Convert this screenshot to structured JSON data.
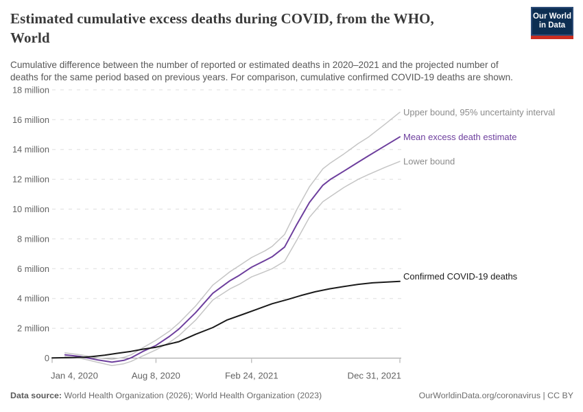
{
  "header": {
    "title_line1": "Estimated cumulative excess deaths during COVID, from the WHO,",
    "title_line2": "World",
    "subtitle_line1": "Cumulative difference between the number of reported or estimated deaths in 2020–2021 and the projected number of",
    "subtitle_line2": "deaths for the same period based on previous years. For comparison, cumulative confirmed COVID-19 deaths are shown.",
    "logo_line1": "Our World",
    "logo_line2": "in Data"
  },
  "footer": {
    "data_source_label": "Data source:",
    "data_source_value": " World Health Organization (2026); World Health Organization (2023)",
    "credit": "OurWorldinData.org/coronavirus | CC BY"
  },
  "colors": {
    "accent_purple": "#6d3e9d",
    "bound_gray": "#c5c5c5",
    "bound_label_gray": "#8b8b8b",
    "confirmed_black": "#1a1a1a",
    "logo_navy": "#0d2e52",
    "logo_red": "#cb2d20"
  },
  "chart_data": {
    "type": "line",
    "title": "Estimated cumulative excess deaths during COVID, from the WHO, World",
    "value_unit": "million deaths",
    "grid": true,
    "legend_position": "line-end-labels",
    "x_axis": {
      "range_days": [
        0,
        727
      ],
      "ticks": [
        {
          "label": "Jan 4, 2020",
          "day": 0
        },
        {
          "label": "Aug 8, 2020",
          "day": 217
        },
        {
          "label": "Feb 24, 2021",
          "day": 417
        },
        {
          "label": "Dec 31, 2021",
          "day": 727
        }
      ]
    },
    "y_axis": {
      "unit_suffix": " million",
      "zero_label": "0",
      "ticks_millions": [
        0,
        2,
        4,
        6,
        8,
        10,
        12,
        14,
        16,
        18
      ],
      "ylim_millions": [
        -0.6,
        18.4
      ]
    },
    "series": [
      {
        "id": "upper-bound",
        "name": "Upper bound, 95% uncertainty interval",
        "color": "#c5c5c5",
        "label_color": "#8b8b8b",
        "width": 1.5,
        "label_dy": 0,
        "points_day_millions": [
          [
            27,
            0.35
          ],
          [
            60,
            0.22
          ],
          [
            95,
            0.02
          ],
          [
            125,
            -0.08
          ],
          [
            150,
            0.05
          ],
          [
            165,
            0.22
          ],
          [
            190,
            0.7
          ],
          [
            217,
            1.2
          ],
          [
            245,
            1.8
          ],
          [
            265,
            2.35
          ],
          [
            300,
            3.5
          ],
          [
            336,
            4.9
          ],
          [
            372,
            5.8
          ],
          [
            391,
            6.2
          ],
          [
            417,
            6.75
          ],
          [
            445,
            7.2
          ],
          [
            460,
            7.5
          ],
          [
            486,
            8.3
          ],
          [
            512,
            10.0
          ],
          [
            538,
            11.5
          ],
          [
            566,
            12.7
          ],
          [
            582,
            13.1
          ],
          [
            610,
            13.7
          ],
          [
            640,
            14.4
          ],
          [
            660,
            14.8
          ],
          [
            696,
            15.7
          ],
          [
            727,
            16.5
          ]
        ]
      },
      {
        "id": "lower-bound",
        "name": "Lower bound",
        "color": "#c5c5c5",
        "label_color": "#8b8b8b",
        "width": 1.5,
        "label_dy": 0,
        "points_day_millions": [
          [
            27,
            0.1
          ],
          [
            60,
            -0.02
          ],
          [
            95,
            -0.28
          ],
          [
            125,
            -0.5
          ],
          [
            150,
            -0.38
          ],
          [
            165,
            -0.22
          ],
          [
            190,
            0.15
          ],
          [
            217,
            0.55
          ],
          [
            245,
            1.05
          ],
          [
            265,
            1.5
          ],
          [
            300,
            2.55
          ],
          [
            336,
            3.9
          ],
          [
            372,
            4.65
          ],
          [
            391,
            4.95
          ],
          [
            417,
            5.45
          ],
          [
            445,
            5.8
          ],
          [
            460,
            6.0
          ],
          [
            486,
            6.5
          ],
          [
            512,
            7.95
          ],
          [
            538,
            9.45
          ],
          [
            566,
            10.5
          ],
          [
            582,
            10.85
          ],
          [
            610,
            11.45
          ],
          [
            640,
            12.0
          ],
          [
            660,
            12.3
          ],
          [
            696,
            12.8
          ],
          [
            727,
            13.2
          ]
        ]
      },
      {
        "id": "mean-excess-deaths",
        "name": "Mean excess death estimate",
        "color": "#6d3e9d",
        "label_color": "#6d3e9d",
        "width": 2,
        "label_dy": 0,
        "points_day_millions": [
          [
            27,
            0.22
          ],
          [
            60,
            0.1
          ],
          [
            95,
            -0.12
          ],
          [
            125,
            -0.27
          ],
          [
            150,
            -0.15
          ],
          [
            165,
            0.02
          ],
          [
            190,
            0.45
          ],
          [
            217,
            0.85
          ],
          [
            245,
            1.45
          ],
          [
            265,
            1.95
          ],
          [
            300,
            3.05
          ],
          [
            336,
            4.35
          ],
          [
            372,
            5.2
          ],
          [
            391,
            5.55
          ],
          [
            417,
            6.1
          ],
          [
            445,
            6.55
          ],
          [
            460,
            6.8
          ],
          [
            486,
            7.45
          ],
          [
            512,
            9.0
          ],
          [
            538,
            10.45
          ],
          [
            566,
            11.6
          ],
          [
            582,
            12.0
          ],
          [
            610,
            12.55
          ],
          [
            640,
            13.15
          ],
          [
            660,
            13.55
          ],
          [
            696,
            14.25
          ],
          [
            727,
            14.85
          ]
        ]
      },
      {
        "id": "confirmed-covid-deaths",
        "name": "Confirmed COVID-19 deaths",
        "color": "#1a1a1a",
        "label_color": "#1a1a1a",
        "width": 2,
        "label_dy": -7,
        "points_day_millions": [
          [
            0,
            0.01
          ],
          [
            40,
            0.03
          ],
          [
            77,
            0.08
          ],
          [
            110,
            0.2
          ],
          [
            135,
            0.32
          ],
          [
            165,
            0.45
          ],
          [
            190,
            0.6
          ],
          [
            217,
            0.73
          ],
          [
            245,
            0.95
          ],
          [
            265,
            1.1
          ],
          [
            300,
            1.6
          ],
          [
            336,
            2.05
          ],
          [
            365,
            2.55
          ],
          [
            400,
            2.95
          ],
          [
            430,
            3.3
          ],
          [
            460,
            3.65
          ],
          [
            494,
            3.95
          ],
          [
            520,
            4.2
          ],
          [
            550,
            4.45
          ],
          [
            580,
            4.65
          ],
          [
            610,
            4.8
          ],
          [
            640,
            4.95
          ],
          [
            670,
            5.05
          ],
          [
            700,
            5.1
          ],
          [
            727,
            5.15
          ]
        ]
      }
    ]
  }
}
